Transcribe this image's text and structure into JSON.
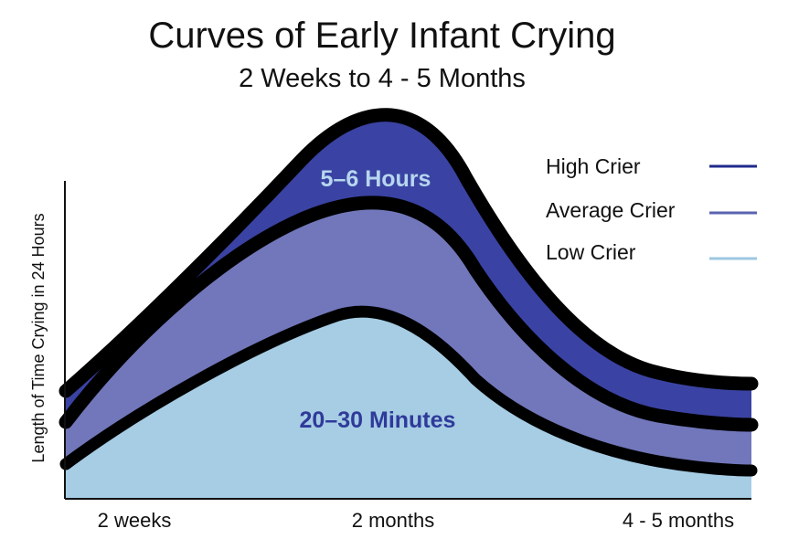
{
  "chart_data": {
    "type": "area",
    "title": "Curves of Early Infant Crying",
    "subtitle": "2 Weeks to 4 - 5 Months",
    "xlabel": "",
    "ylabel": "Length of Time Crying in 24 Hours",
    "x_ticks": [
      "2 weeks",
      "2 months",
      "4 - 5 months"
    ],
    "legend_position": "top-right",
    "grid": false,
    "series": [
      {
        "name": "High Crier",
        "color": "#1f2a8c",
        "fill": "#3a43a3"
      },
      {
        "name": "Average Crier",
        "color": "#5a63b0",
        "fill": "#7177ba"
      },
      {
        "name": "Low Crier",
        "color": "#9cc7e0",
        "fill": "#a6cde4"
      }
    ],
    "annotations": [
      {
        "text": "5–6 Hours",
        "color": "#b7d6ee"
      },
      {
        "text": "20–30 Minutes",
        "color": "#2f3a9a"
      }
    ],
    "outline_color": "#000000"
  }
}
